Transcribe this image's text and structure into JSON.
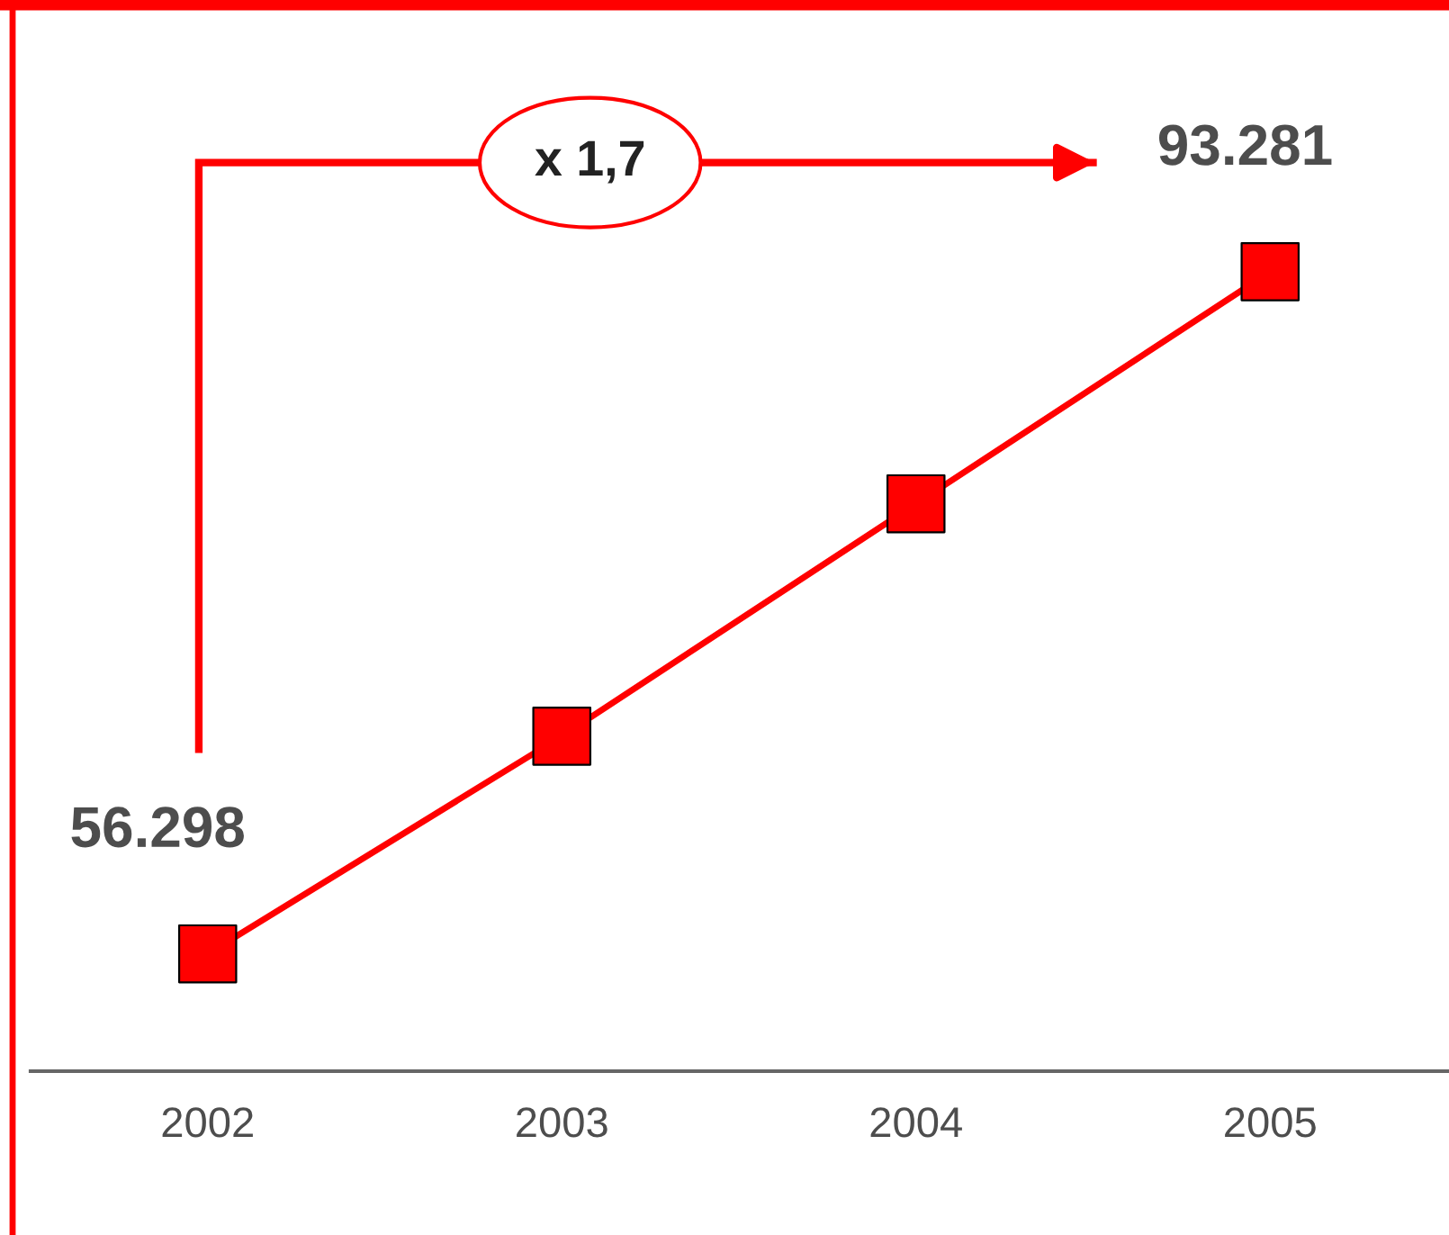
{
  "chart_data": {
    "type": "line",
    "categories": [
      "2002",
      "2003",
      "2004",
      "2005"
    ],
    "series": [
      {
        "color": "#ff0000",
        "values": [
          56.298,
          68.1,
          80.7,
          93.281
        ],
        "value_labels": [
          "56.298",
          null,
          null,
          "93.281"
        ]
      }
    ],
    "marker": "square",
    "line_style": "solid",
    "grid": false,
    "tick_labels": "x",
    "annotations": [
      "x 1,7"
    ]
  }
}
